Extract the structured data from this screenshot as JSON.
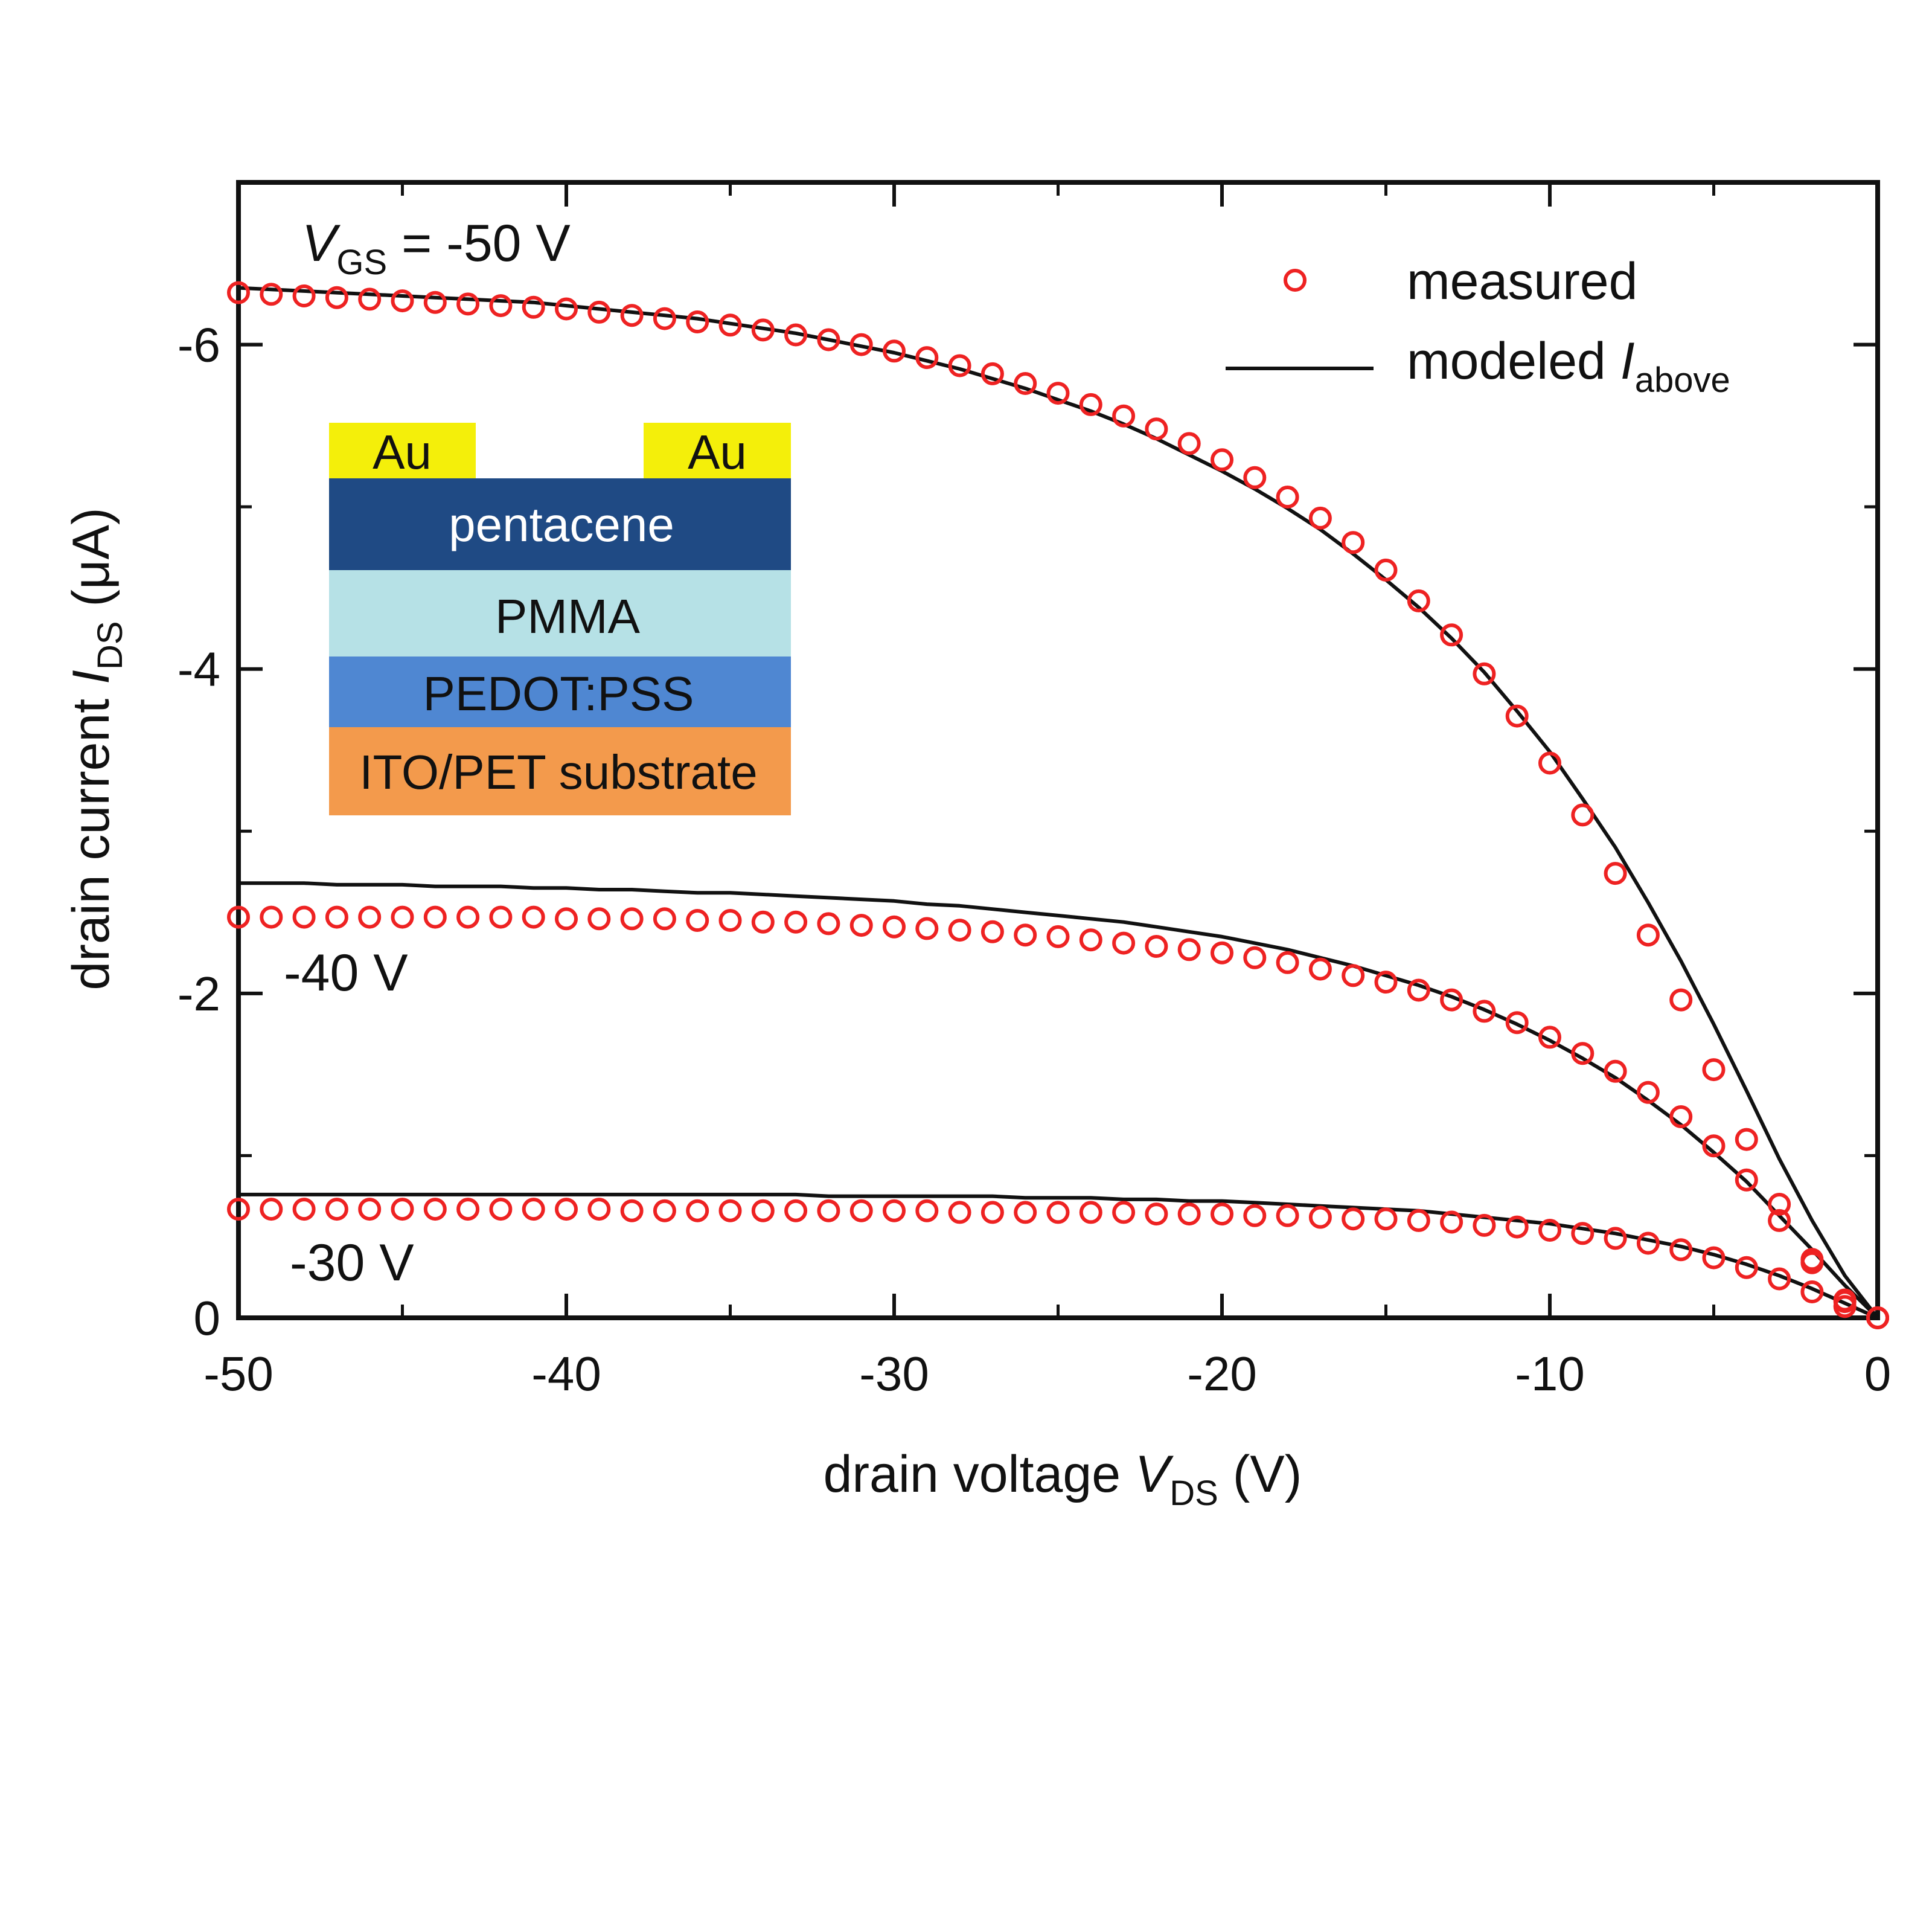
{
  "chart_data": {
    "type": "scatter",
    "xlabel": {
      "main": "drain voltage ",
      "symbol": "V",
      "sub": "DS",
      "unit": " (V)"
    },
    "ylabel": {
      "main": "drain current ",
      "symbol": "I",
      "sub": "DS",
      "unit": " (μA)"
    },
    "xlim": [
      -50,
      0
    ],
    "ylim": [
      0,
      -7
    ],
    "y_orientation": "more negative values upward",
    "x_ticks": [
      -50,
      -40,
      -30,
      -20,
      -10,
      0
    ],
    "y_ticks": [
      0,
      -2,
      -4,
      -6
    ],
    "x_tick_labels": [
      "-50",
      "-40",
      "-30",
      "-20",
      "-10",
      "0"
    ],
    "y_tick_labels": [
      "0",
      "-2",
      "-4",
      "-6"
    ],
    "grid": false,
    "legend": {
      "placement": "top-right",
      "measured": "measured",
      "modeled_main": "modeled ",
      "modeled_symbol": "I",
      "modeled_sub": "above"
    },
    "annotations": {
      "vgs_symbol": "V",
      "vgs_sub": "GS",
      "vgs_value": " = -50 V",
      "minus40": "-40 V",
      "minus30": "-30 V"
    },
    "colors": {
      "measured": "#ee2222",
      "modeled": "#111111"
    },
    "x": [
      -50,
      -49,
      -48,
      -47,
      -46,
      -45,
      -44,
      -43,
      -42,
      -41,
      -40,
      -39,
      -38,
      -37,
      -36,
      -35,
      -34,
      -33,
      -32,
      -31,
      -30,
      -29,
      -28,
      -27,
      -26,
      -25,
      -24,
      -23,
      -22,
      -21,
      -20,
      -19,
      -18,
      -17,
      -16,
      -15,
      -14,
      -13,
      -12,
      -11,
      -10,
      -9,
      -8,
      -7,
      -6,
      -5,
      -4,
      -3,
      -2,
      -1,
      0
    ],
    "series": [
      {
        "name": "measured",
        "group": "-50 V",
        "kind": "markers",
        "values": [
          -6.32,
          -6.31,
          -6.3,
          -6.29,
          -6.28,
          -6.27,
          -6.26,
          -6.25,
          -6.24,
          -6.23,
          -6.22,
          -6.2,
          -6.18,
          -6.16,
          -6.14,
          -6.12,
          -6.09,
          -6.06,
          -6.03,
          -6.0,
          -5.96,
          -5.92,
          -5.87,
          -5.82,
          -5.76,
          -5.7,
          -5.63,
          -5.56,
          -5.48,
          -5.39,
          -5.29,
          -5.18,
          -5.06,
          -4.93,
          -4.78,
          -4.61,
          -4.42,
          -4.21,
          -3.97,
          -3.71,
          -3.42,
          -3.1,
          -2.74,
          -2.36,
          -1.96,
          -1.53,
          -1.1,
          -0.7,
          -0.36,
          -0.1,
          0
        ]
      },
      {
        "name": "modeled",
        "group": "-50 V",
        "kind": "line",
        "values": [
          -6.35,
          -6.34,
          -6.33,
          -6.32,
          -6.31,
          -6.3,
          -6.29,
          -6.28,
          -6.27,
          -6.26,
          -6.24,
          -6.22,
          -6.2,
          -6.18,
          -6.16,
          -6.13,
          -6.1,
          -6.07,
          -6.03,
          -5.99,
          -5.95,
          -5.9,
          -5.85,
          -5.79,
          -5.73,
          -5.66,
          -5.59,
          -5.51,
          -5.42,
          -5.32,
          -5.22,
          -5.11,
          -4.99,
          -4.86,
          -4.71,
          -4.55,
          -4.38,
          -4.19,
          -3.98,
          -3.74,
          -3.49,
          -3.2,
          -2.9,
          -2.56,
          -2.2,
          -1.81,
          -1.4,
          -0.98,
          -0.6,
          -0.26,
          0
        ]
      },
      {
        "name": "measured",
        "group": "-40 V",
        "kind": "markers",
        "values": [
          -2.47,
          -2.47,
          -2.47,
          -2.47,
          -2.47,
          -2.47,
          -2.47,
          -2.47,
          -2.47,
          -2.47,
          -2.46,
          -2.46,
          -2.46,
          -2.46,
          -2.45,
          -2.45,
          -2.44,
          -2.44,
          -2.43,
          -2.42,
          -2.41,
          -2.4,
          -2.39,
          -2.38,
          -2.36,
          -2.35,
          -2.33,
          -2.31,
          -2.29,
          -2.27,
          -2.25,
          -2.22,
          -2.19,
          -2.15,
          -2.11,
          -2.07,
          -2.02,
          -1.96,
          -1.89,
          -1.82,
          -1.73,
          -1.63,
          -1.52,
          -1.39,
          -1.24,
          -1.06,
          -0.85,
          -0.6,
          -0.34,
          -0.11,
          0
        ]
      },
      {
        "name": "modeled",
        "group": "-40 V",
        "kind": "line",
        "values": [
          -2.68,
          -2.68,
          -2.68,
          -2.67,
          -2.67,
          -2.67,
          -2.66,
          -2.66,
          -2.66,
          -2.65,
          -2.65,
          -2.64,
          -2.64,
          -2.63,
          -2.62,
          -2.62,
          -2.61,
          -2.6,
          -2.59,
          -2.58,
          -2.57,
          -2.55,
          -2.54,
          -2.52,
          -2.5,
          -2.48,
          -2.46,
          -2.44,
          -2.41,
          -2.38,
          -2.35,
          -2.31,
          -2.27,
          -2.22,
          -2.17,
          -2.11,
          -2.05,
          -1.98,
          -1.9,
          -1.81,
          -1.71,
          -1.6,
          -1.48,
          -1.34,
          -1.19,
          -1.02,
          -0.84,
          -0.63,
          -0.42,
          -0.2,
          0
        ]
      },
      {
        "name": "measured",
        "group": "-30 V",
        "kind": "markers",
        "values": [
          -0.67,
          -0.67,
          -0.67,
          -0.67,
          -0.67,
          -0.67,
          -0.67,
          -0.67,
          -0.67,
          -0.67,
          -0.67,
          -0.67,
          -0.66,
          -0.66,
          -0.66,
          -0.66,
          -0.66,
          -0.66,
          -0.66,
          -0.66,
          -0.66,
          -0.66,
          -0.65,
          -0.65,
          -0.65,
          -0.65,
          -0.65,
          -0.65,
          -0.64,
          -0.64,
          -0.64,
          -0.63,
          -0.63,
          -0.62,
          -0.61,
          -0.61,
          -0.6,
          -0.59,
          -0.57,
          -0.56,
          -0.54,
          -0.52,
          -0.49,
          -0.46,
          -0.42,
          -0.37,
          -0.31,
          -0.24,
          -0.16,
          -0.07,
          0
        ]
      },
      {
        "name": "modeled",
        "group": "-30 V",
        "kind": "line",
        "values": [
          -0.76,
          -0.76,
          -0.76,
          -0.76,
          -0.76,
          -0.76,
          -0.76,
          -0.76,
          -0.76,
          -0.76,
          -0.76,
          -0.76,
          -0.76,
          -0.76,
          -0.76,
          -0.76,
          -0.76,
          -0.76,
          -0.75,
          -0.75,
          -0.75,
          -0.75,
          -0.75,
          -0.75,
          -0.74,
          -0.74,
          -0.74,
          -0.73,
          -0.73,
          -0.72,
          -0.72,
          -0.71,
          -0.7,
          -0.69,
          -0.68,
          -0.67,
          -0.66,
          -0.64,
          -0.62,
          -0.6,
          -0.58,
          -0.55,
          -0.52,
          -0.48,
          -0.44,
          -0.39,
          -0.33,
          -0.26,
          -0.18,
          -0.09,
          0
        ]
      }
    ],
    "inset": {
      "layers": [
        {
          "label": "Au",
          "color": "#f4ef0a"
        },
        {
          "label": "Au",
          "color": "#f4ef0a"
        },
        {
          "label": "pentacene",
          "color": "#1f4a84"
        },
        {
          "label": "PMMA",
          "color": "#b6e1e6"
        },
        {
          "label": "PEDOT:PSS",
          "color": "#4f87d2"
        },
        {
          "label": "ITO/PET substrate",
          "color": "#f39a4c"
        }
      ]
    }
  }
}
